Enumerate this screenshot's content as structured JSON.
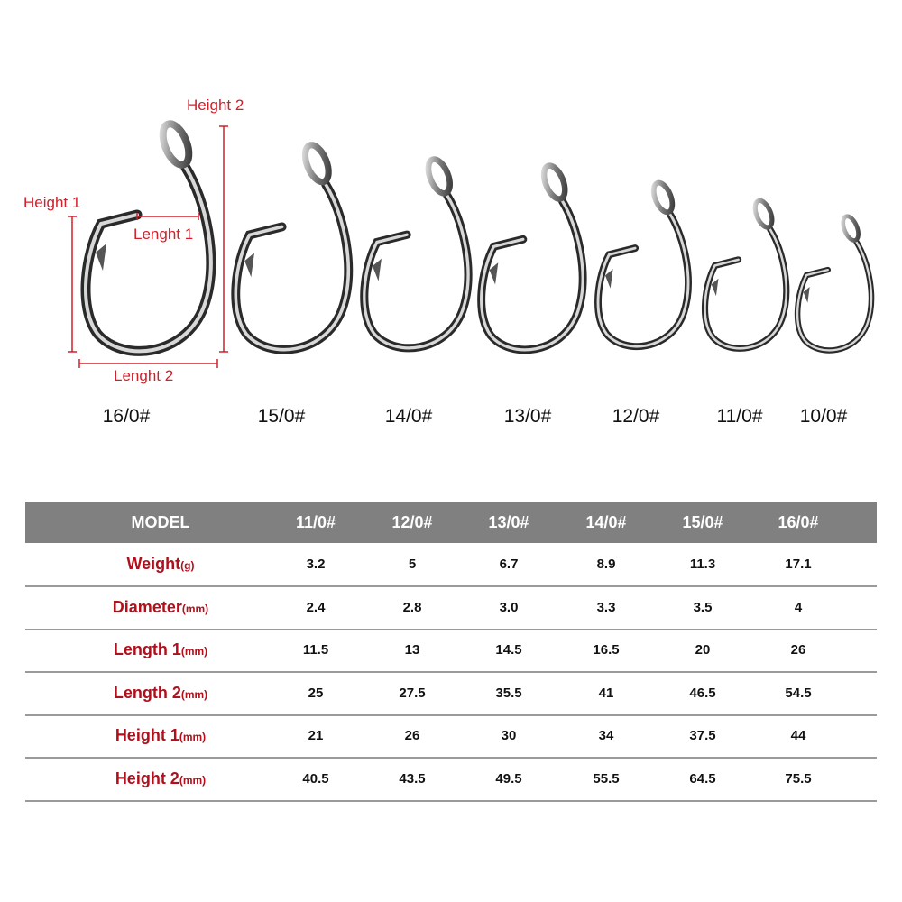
{
  "dimension_labels": {
    "height1": "Height 1",
    "height2": "Height 2",
    "length1": "Lenght 1",
    "length2": "Lenght 2"
  },
  "hook_sizes": [
    "16/0#",
    "15/0#",
    "14/0#",
    "13/0#",
    "12/0#",
    "11/0#",
    "10/0#"
  ],
  "colors": {
    "annotation": "#d0202a",
    "header_bg": "#808080",
    "label_text": "#b0101c"
  },
  "table": {
    "header": {
      "model": "MODEL",
      "columns": [
        "11/0#",
        "12/0#",
        "13/0#",
        "14/0#",
        "15/0#",
        "16/0#"
      ]
    },
    "rows": [
      {
        "name": "Weight",
        "unit": "(g)",
        "values": [
          "3.2",
          "5",
          "6.7",
          "8.9",
          "11.3",
          "17.1"
        ]
      },
      {
        "name": "Diameter",
        "unit": "(mm)",
        "values": [
          "2.4",
          "2.8",
          "3.0",
          "3.3",
          "3.5",
          "4"
        ]
      },
      {
        "name": "Length 1",
        "unit": "(mm)",
        "values": [
          "11.5",
          "13",
          "14.5",
          "16.5",
          "20",
          "26"
        ]
      },
      {
        "name": "Length 2",
        "unit": "(mm)",
        "values": [
          "25",
          "27.5",
          "35.5",
          "41",
          "46.5",
          "54.5"
        ]
      },
      {
        "name": "Height 1",
        "unit": "(mm)",
        "values": [
          "21",
          "26",
          "30",
          "34",
          "37.5",
          "44"
        ]
      },
      {
        "name": "Height 2",
        "unit": "(mm)",
        "values": [
          "40.5",
          "43.5",
          "49.5",
          "55.5",
          "64.5",
          "75.5"
        ]
      }
    ]
  }
}
